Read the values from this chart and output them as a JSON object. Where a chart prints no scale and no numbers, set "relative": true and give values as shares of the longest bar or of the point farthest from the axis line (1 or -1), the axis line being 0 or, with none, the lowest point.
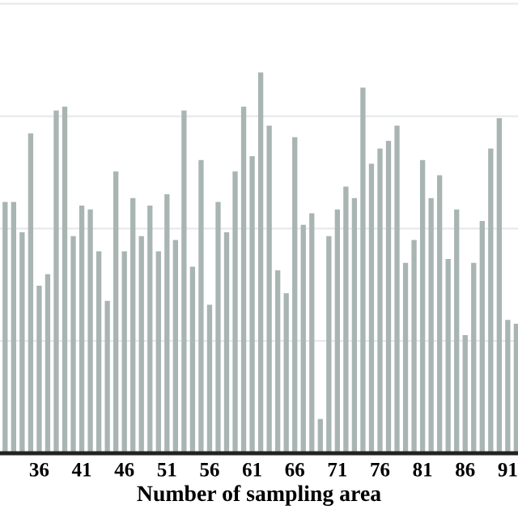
{
  "chart_data": {
    "type": "bar",
    "relative": true,
    "xlabel": "Number of sampling area",
    "categories": [
      null,
      null,
      null,
      null,
      "36",
      null,
      null,
      null,
      null,
      "41",
      null,
      null,
      null,
      null,
      "46",
      null,
      null,
      null,
      null,
      "51",
      null,
      null,
      null,
      null,
      "56",
      null,
      null,
      null,
      null,
      "61",
      null,
      null,
      null,
      null,
      "66",
      null,
      null,
      null,
      null,
      "71",
      null,
      null,
      null,
      null,
      "76",
      null,
      null,
      null,
      null,
      "81",
      null,
      null,
      null,
      null,
      "86",
      null,
      null,
      null,
      null,
      "91",
      null
    ],
    "values": [
      0.66,
      0.66,
      0.58,
      0.84,
      0.44,
      0.47,
      0.9,
      0.91,
      0.57,
      0.65,
      0.64,
      0.53,
      0.4,
      0.74,
      0.53,
      0.67,
      0.57,
      0.65,
      0.53,
      0.68,
      0.56,
      0.9,
      0.49,
      0.77,
      0.39,
      0.66,
      0.58,
      0.74,
      0.91,
      0.78,
      1.0,
      0.86,
      0.48,
      0.42,
      0.83,
      0.6,
      0.63,
      0.09,
      0.57,
      0.64,
      0.7,
      0.67,
      0.96,
      0.76,
      0.8,
      0.82,
      0.86,
      0.5,
      0.56,
      0.77,
      0.67,
      0.73,
      0.51,
      0.64,
      0.31,
      0.5,
      0.61,
      0.8,
      0.88,
      0.35,
      0.34
    ],
    "color": "#a9b5b3",
    "grid": "y"
  }
}
